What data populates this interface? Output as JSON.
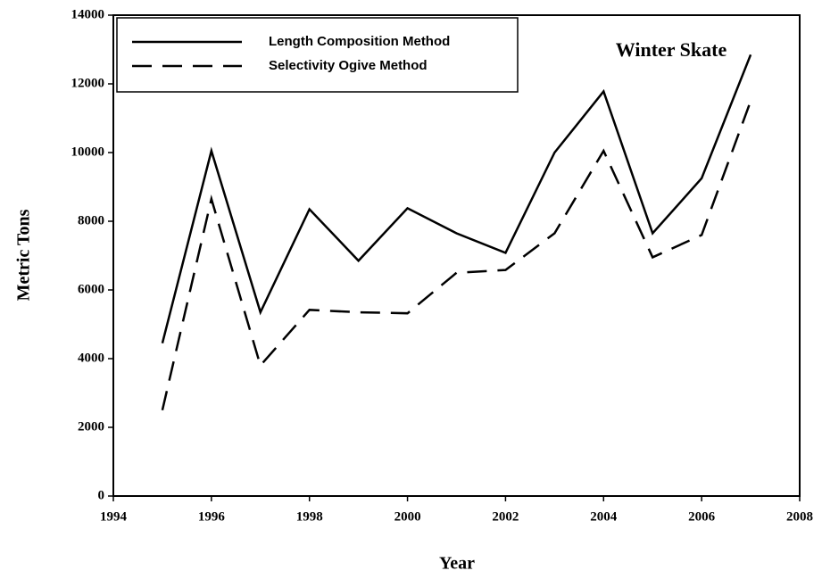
{
  "chart_data": {
    "type": "line",
    "xlabel": "Year",
    "ylabel": "Metric Tons",
    "annotation": "Winter Skate",
    "x": [
      1995,
      1996,
      1997,
      1998,
      1999,
      2000,
      2001,
      2002,
      2003,
      2004,
      2005,
      2006,
      2007
    ],
    "series": [
      {
        "name": "Length Composition Method",
        "color": "#000000",
        "style": "solid",
        "values": [
          4450,
          10050,
          5350,
          8350,
          6850,
          8380,
          7650,
          7080,
          10000,
          11780,
          7650,
          9250,
          12850
        ]
      },
      {
        "name": "Selectivity Ogive Method",
        "color": "#000000",
        "style": "dashed",
        "values": [
          2500,
          8650,
          3800,
          5420,
          5350,
          5320,
          6500,
          6580,
          7650,
          10050,
          6950,
          7600,
          11500
        ]
      }
    ],
    "xlim": [
      1994,
      2008
    ],
    "xticks": [
      1994,
      1996,
      1998,
      2000,
      2002,
      2004,
      2006,
      2008
    ],
    "ylim": [
      0,
      14000
    ],
    "yticks": [
      0,
      2000,
      4000,
      6000,
      8000,
      10000,
      12000,
      14000
    ],
    "legend": "upper left",
    "grid": false
  }
}
